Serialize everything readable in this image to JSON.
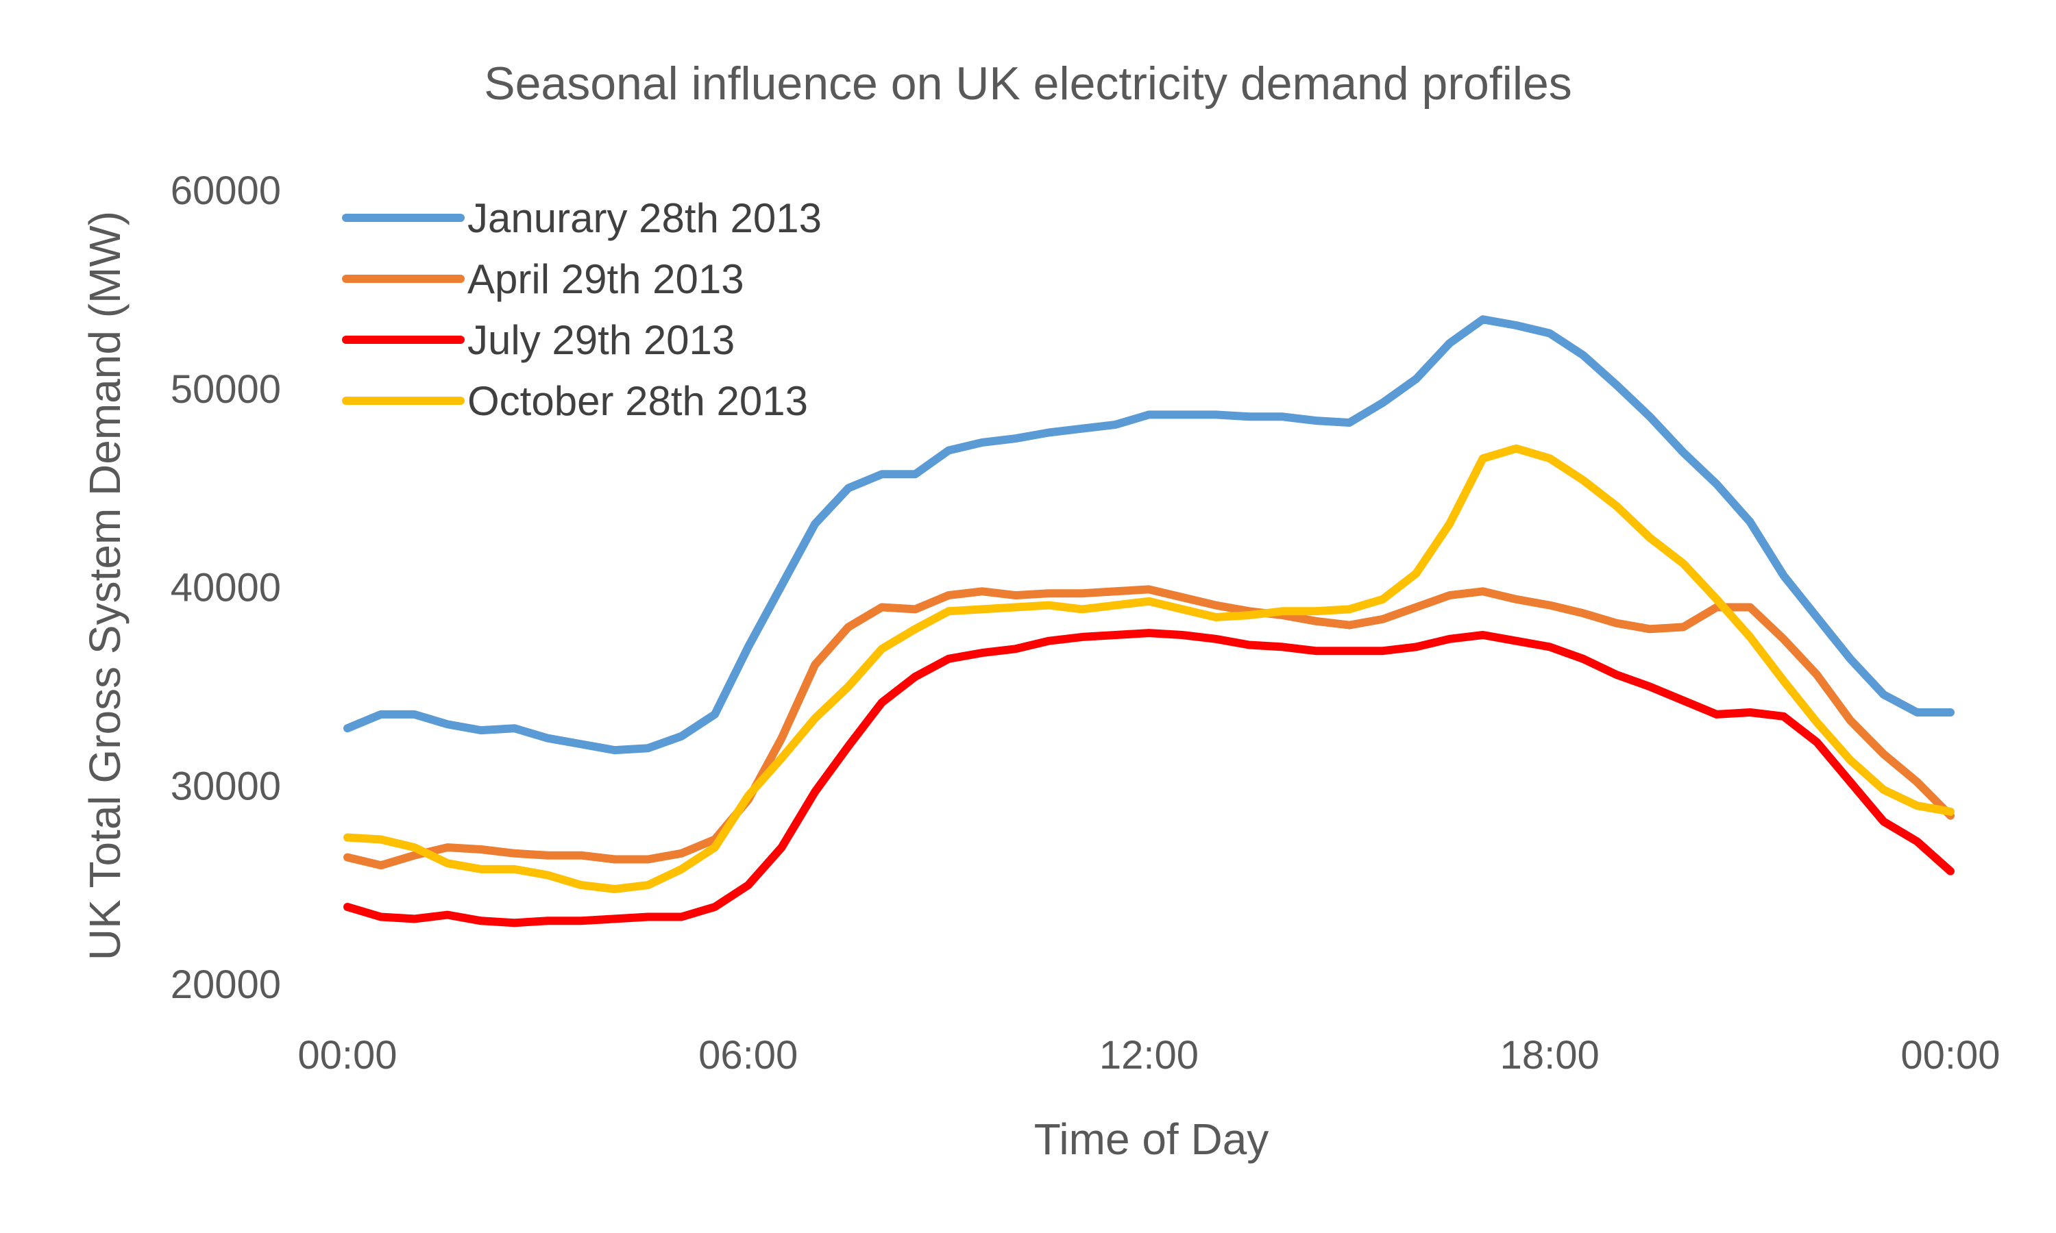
{
  "chart_data": {
    "type": "line",
    "title": "Seasonal influence on UK electricity demand profiles",
    "xlabel": "Time of Day",
    "ylabel": "UK Total Gross System Demand (MW)",
    "ylim": [
      20000,
      60000
    ],
    "yticks": [
      "60000",
      "50000",
      "40000",
      "30000",
      "20000"
    ],
    "xticks": [
      "00:00",
      "06:00",
      "12:00",
      "18:00",
      "00:00"
    ],
    "x_range_hours": [
      0,
      24
    ],
    "grid": false,
    "legend_position": "top-left",
    "series": [
      {
        "name": "Janurary 28th 2013",
        "color": "#5b9bd5",
        "values": [
          32900,
          33600,
          33600,
          33100,
          32800,
          32900,
          32400,
          32100,
          31800,
          31900,
          32500,
          33600,
          37000,
          40100,
          43200,
          45000,
          45700,
          45700,
          46900,
          47300,
          47500,
          47800,
          48000,
          48200,
          48700,
          48700,
          48700,
          48600,
          48600,
          48400,
          48300,
          49300,
          50500,
          52300,
          53500,
          53200,
          52800,
          51700,
          50200,
          48600,
          46800,
          45200,
          43300,
          40600,
          38500,
          36400,
          34600,
          33700,
          33700
        ]
      },
      {
        "name": "April 29th 2013",
        "color": "#ed7d31",
        "values": [
          26400,
          26000,
          26500,
          26900,
          26800,
          26600,
          26500,
          26500,
          26300,
          26300,
          26600,
          27300,
          29300,
          32400,
          36100,
          38000,
          39000,
          38900,
          39600,
          39800,
          39600,
          39700,
          39700,
          39800,
          39900,
          39500,
          39100,
          38800,
          38600,
          38300,
          38100,
          38400,
          39000,
          39600,
          39800,
          39400,
          39100,
          38700,
          38200,
          37900,
          38000,
          39000,
          39000,
          37400,
          35600,
          33300,
          31600,
          30200,
          28500
        ]
      },
      {
        "name": "July 29th 2013",
        "color": "#ff0000",
        "values": [
          23900,
          23400,
          23300,
          23500,
          23200,
          23100,
          23200,
          23200,
          23300,
          23400,
          23400,
          23900,
          25000,
          26900,
          29700,
          32000,
          34200,
          35500,
          36400,
          36700,
          36900,
          37300,
          37500,
          37600,
          37700,
          37600,
          37400,
          37100,
          37000,
          36800,
          36800,
          36800,
          37000,
          37400,
          37600,
          37300,
          37000,
          36400,
          35600,
          35000,
          34300,
          33600,
          33700,
          33500,
          32200,
          30200,
          28200,
          27200,
          25700
        ]
      },
      {
        "name": "October 28th 2013",
        "color": "#ffc000",
        "values": [
          27400,
          27300,
          26900,
          26100,
          25800,
          25800,
          25500,
          25000,
          24800,
          25000,
          25800,
          26900,
          29500,
          31400,
          33400,
          35000,
          36900,
          37900,
          38800,
          38900,
          39000,
          39100,
          38900,
          39100,
          39300,
          38900,
          38500,
          38600,
          38800,
          38800,
          38900,
          39400,
          40700,
          43200,
          46500,
          47000,
          46500,
          45400,
          44100,
          42500,
          41200,
          39400,
          37500,
          35300,
          33200,
          31300,
          29800,
          29000,
          28700
        ]
      }
    ]
  }
}
